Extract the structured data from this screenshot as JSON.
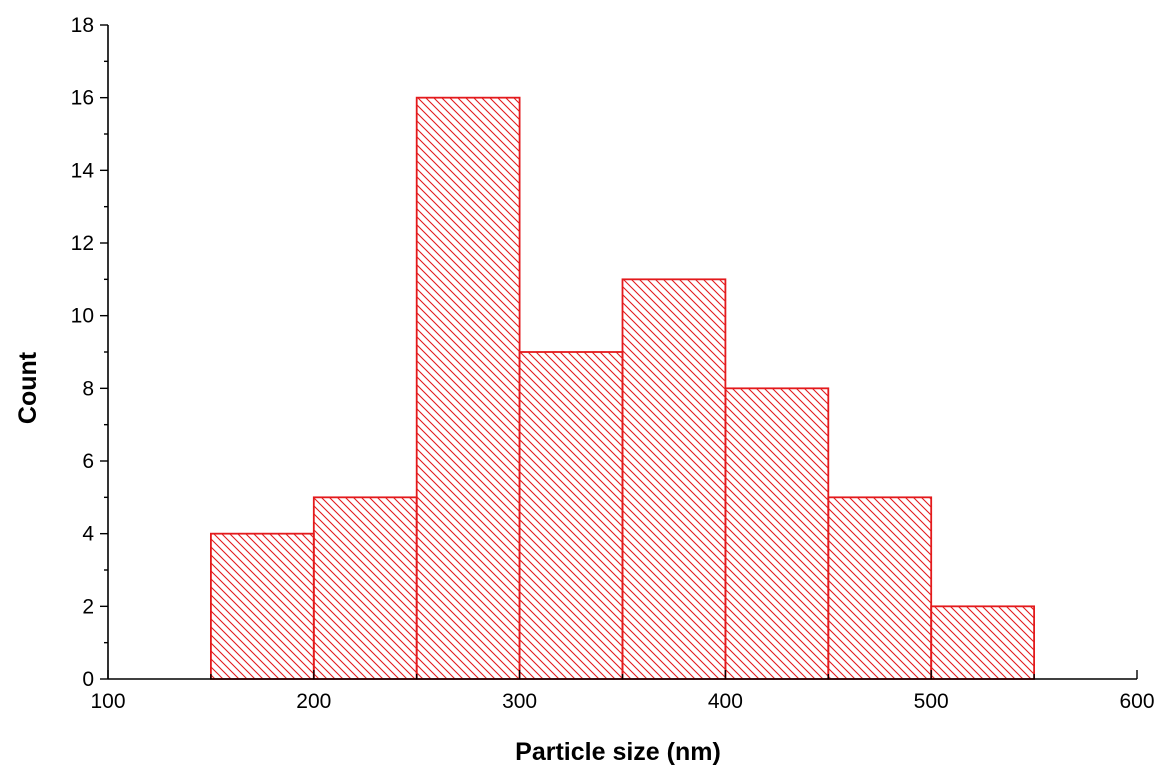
{
  "chart_data": {
    "type": "bar",
    "subtype": "histogram",
    "bins": [
      {
        "start": 150,
        "end": 200,
        "value": 4
      },
      {
        "start": 200,
        "end": 250,
        "value": 5
      },
      {
        "start": 250,
        "end": 300,
        "value": 16
      },
      {
        "start": 300,
        "end": 350,
        "value": 9
      },
      {
        "start": 350,
        "end": 400,
        "value": 11
      },
      {
        "start": 400,
        "end": 450,
        "value": 8
      },
      {
        "start": 450,
        "end": 500,
        "value": 5
      },
      {
        "start": 500,
        "end": 550,
        "value": 2
      }
    ],
    "xlabel": "Particle size (nm)",
    "ylabel": "Count",
    "xlim": [
      100,
      600
    ],
    "ylim": [
      0,
      18
    ],
    "x_ticks": [
      100,
      200,
      300,
      400,
      500,
      600
    ],
    "y_ticks": [
      0,
      2,
      4,
      6,
      8,
      10,
      12,
      14,
      16,
      18
    ],
    "bar_color": "#e31a1c",
    "bar_fill": "diagonal hatch",
    "grid": false,
    "legend": "none"
  }
}
